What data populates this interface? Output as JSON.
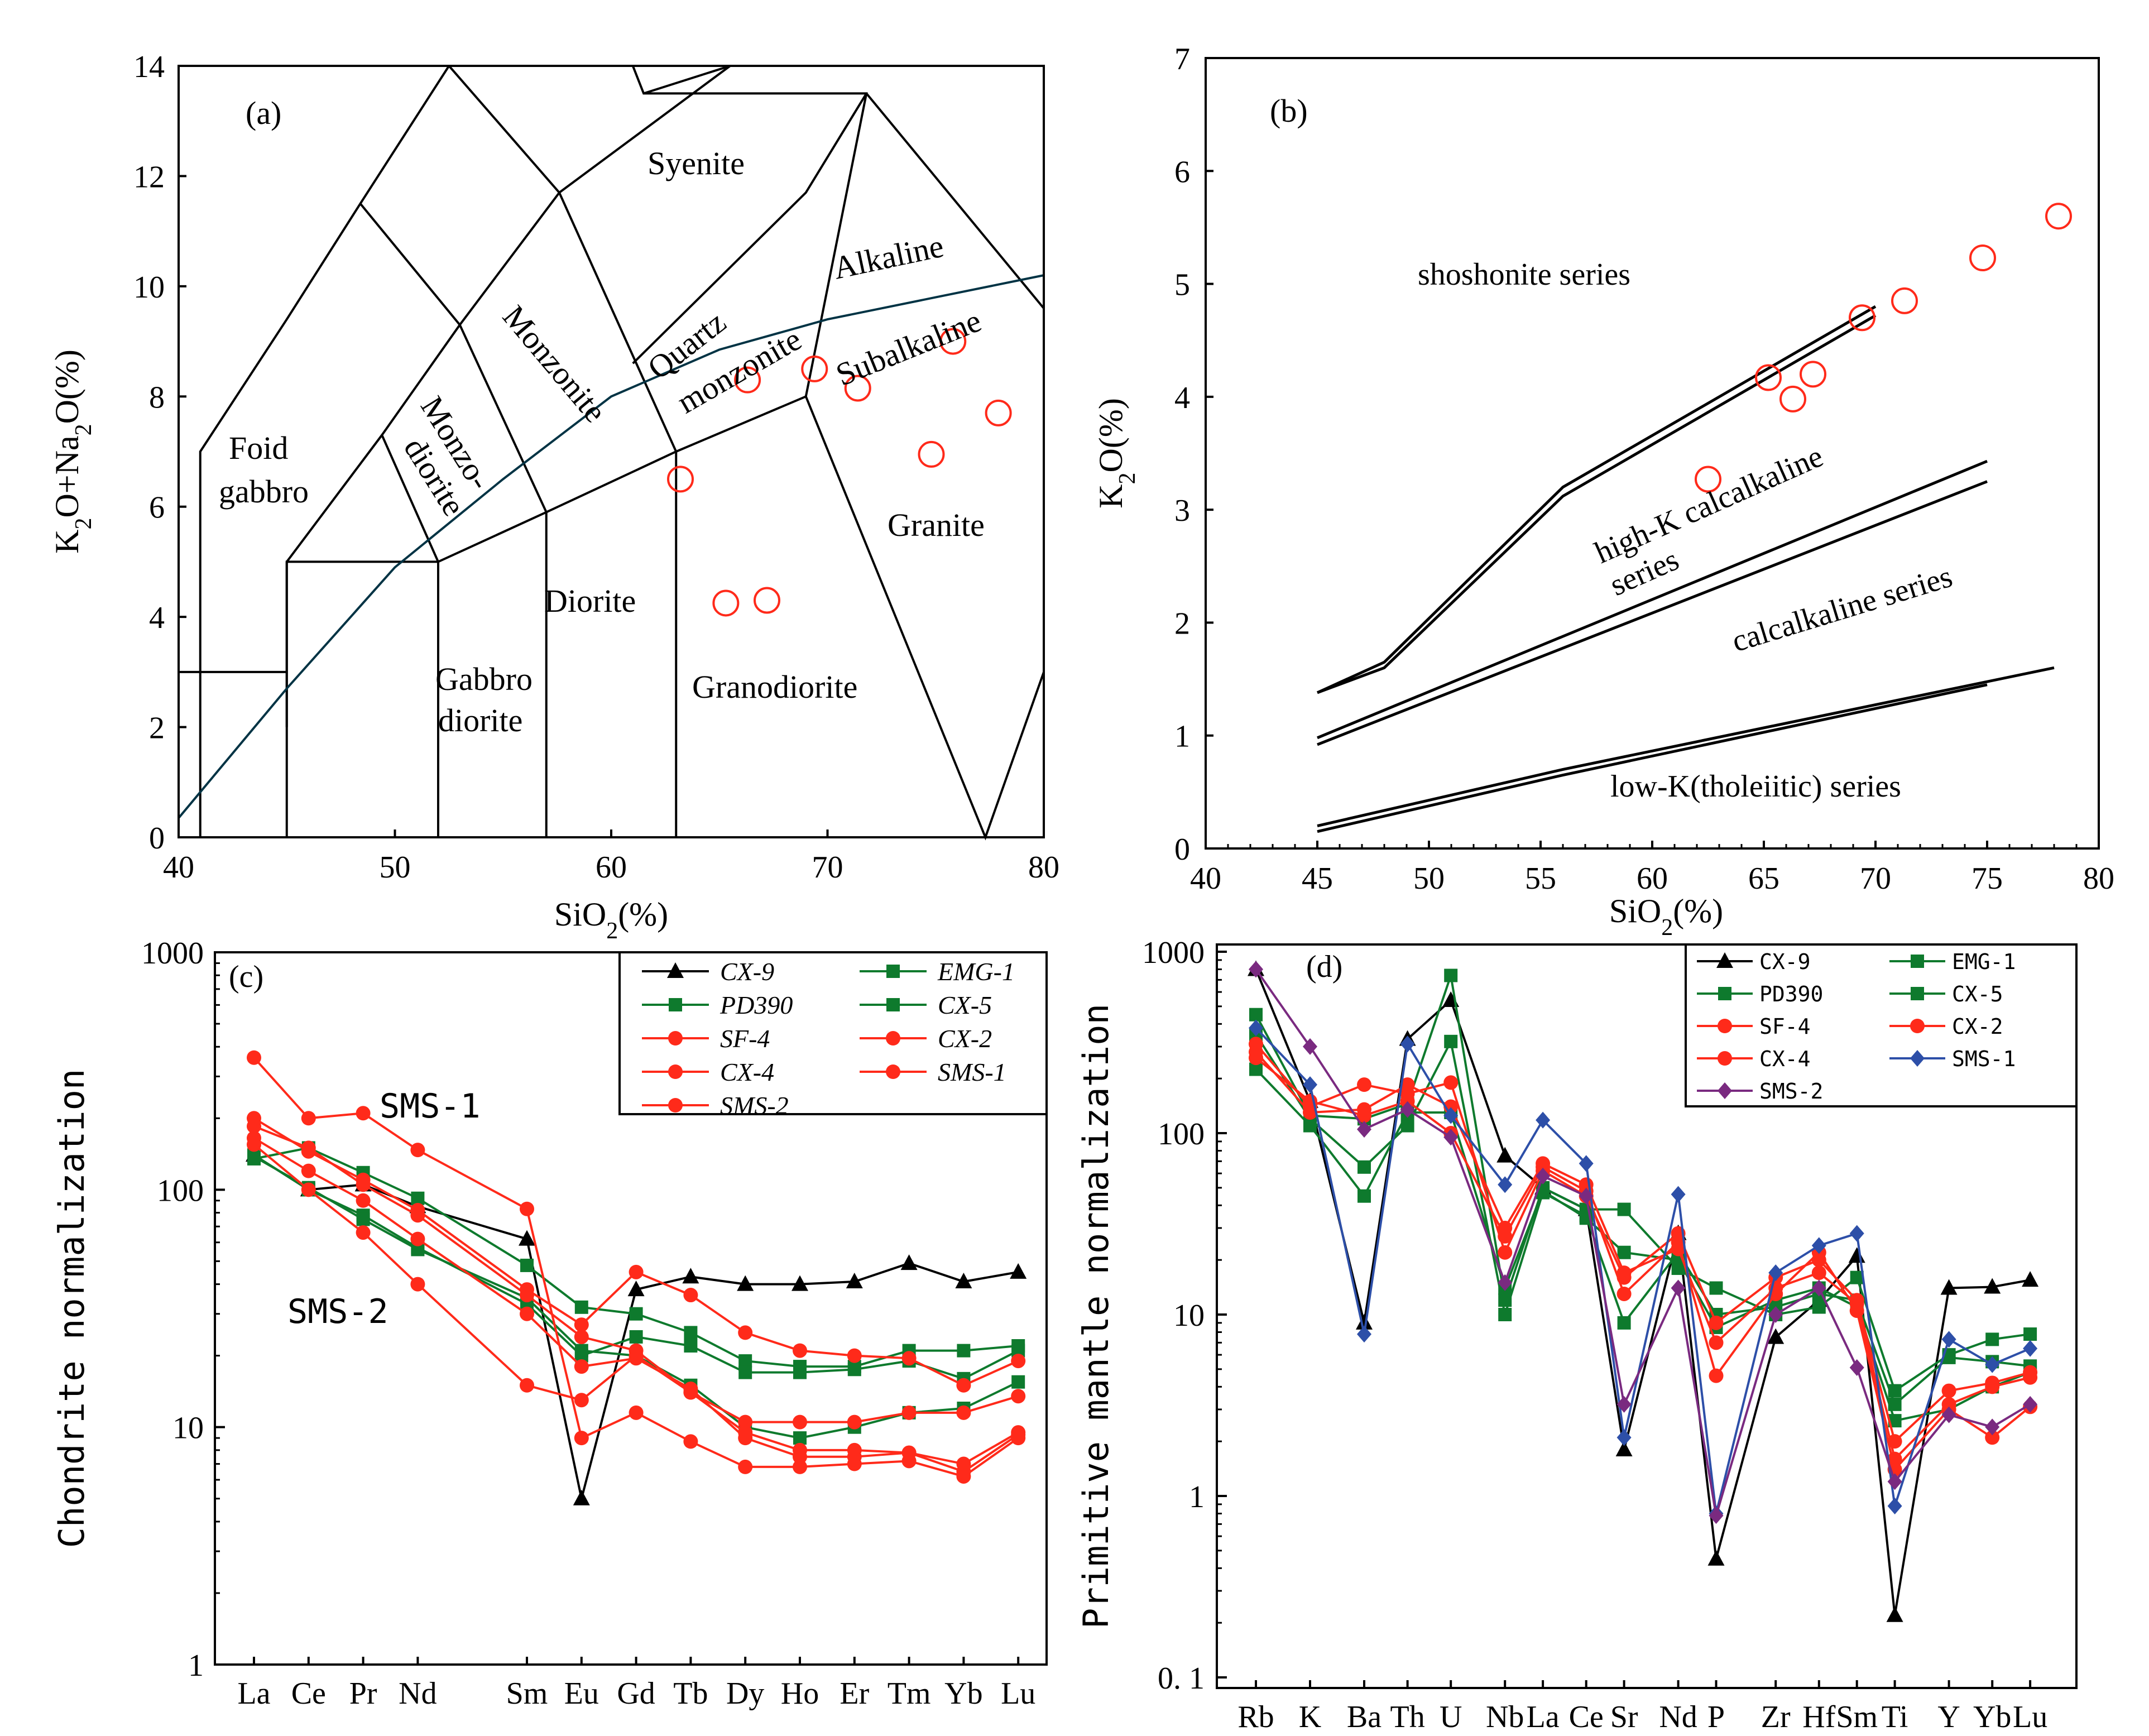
{
  "panels": {
    "a": {
      "label": "(a)",
      "xlabel": "SiO2(%)",
      "ylabel": "K2O+Na2O(%)",
      "xlim": [
        40,
        80
      ],
      "ylim": [
        0,
        14
      ],
      "xticks": [
        "40",
        "50",
        "60",
        "70",
        "80"
      ],
      "yticks": [
        "0",
        "2",
        "4",
        "6",
        "8",
        "10",
        "12",
        "14"
      ],
      "field_labels": [
        "Foid",
        "gabbro",
        "Monzo-",
        "diorite",
        "Monzonite",
        "Quartz",
        "monzonite",
        "Syenite",
        "Alkaline",
        "Subalkaline",
        "Diorite",
        "Gabbro",
        "diorite",
        "Granodiorite",
        "Granite"
      ],
      "boundary_color": "#003344",
      "marker_color": "#ff2a1a"
    },
    "b": {
      "label": "(b)",
      "xlabel": "SiO2(%)",
      "ylabel": "K2O(%)",
      "xlim": [
        40,
        80
      ],
      "ylim": [
        0,
        7
      ],
      "xticks": [
        "40",
        "45",
        "50",
        "55",
        "60",
        "65",
        "70",
        "75",
        "80"
      ],
      "yticks": [
        "0",
        "1",
        "2",
        "3",
        "4",
        "5",
        "6",
        "7"
      ],
      "series_labels": [
        "shoshonite series",
        "high-K calcalkaline",
        "series",
        "calcalkaline series",
        "low-K(tholeiitic) series"
      ]
    },
    "c": {
      "label": "(c)",
      "ylabel": "Chondrite normalization",
      "yticks": [
        "1",
        "10",
        "100",
        "1000"
      ],
      "annotations": [
        "SMS-1",
        "SMS-2"
      ]
    },
    "d": {
      "label": "(d)",
      "ylabel": "Primitive mantle normalization",
      "yticks": [
        "0. 1",
        "1",
        "10",
        "100",
        "1000"
      ]
    }
  },
  "chart_data": [
    {
      "type": "scatter",
      "title": "",
      "xlabel": "SiO2(%)",
      "ylabel": "K2O+Na2O(%)",
      "xlim": [
        40,
        80
      ],
      "ylim": [
        0,
        14
      ],
      "points": [
        [
          63.2,
          6.5
        ],
        [
          65.3,
          4.25
        ],
        [
          67.2,
          4.3
        ],
        [
          66.3,
          8.3
        ],
        [
          69.4,
          8.5
        ],
        [
          71.4,
          8.15
        ],
        [
          74.8,
          6.95
        ],
        [
          75.8,
          9.0
        ],
        [
          77.9,
          7.7
        ]
      ],
      "field_lines": [
        [
          [
            41,
            0
          ],
          [
            41,
            7
          ],
          [
            45,
            9.4
          ],
          [
            48.4,
            11.5
          ],
          [
            52.5,
            14
          ]
        ],
        [
          [
            45,
            0
          ],
          [
            45,
            5
          ],
          [
            52,
            5
          ],
          [
            57,
            5.9
          ],
          [
            63,
            7
          ],
          [
            69,
            8
          ],
          [
            71.8,
            13.5
          ],
          [
            61.5,
            13.5
          ],
          [
            61,
            14
          ]
        ],
        [
          [
            45,
            2
          ],
          [
            45,
            5
          ]
        ],
        [
          [
            45,
            5
          ],
          [
            49.4,
            7.3
          ],
          [
            53,
            9.3
          ],
          [
            48.4,
            11.5
          ]
        ],
        [
          [
            49.4,
            7.3
          ],
          [
            52,
            5
          ]
        ],
        [
          [
            52,
            0
          ],
          [
            52,
            5
          ]
        ],
        [
          [
            53,
            9.3
          ],
          [
            57,
            5.9
          ],
          [
            57,
            0
          ]
        ],
        [
          [
            53,
            9.3
          ],
          [
            57.6,
            11.7
          ],
          [
            52.5,
            14
          ]
        ],
        [
          [
            57.6,
            11.7
          ],
          [
            63,
            7
          ],
          [
            63,
            0
          ]
        ],
        [
          [
            57.6,
            11.7
          ],
          [
            65.5,
            14
          ]
        ],
        [
          [
            61.5,
            13.5
          ],
          [
            65.5,
            14
          ]
        ],
        [
          [
            69,
            8
          ],
          [
            77.3,
            0
          ],
          [
            80,
            3
          ]
        ],
        [
          [
            71.8,
            13.5
          ],
          [
            80,
            9.6
          ]
        ],
        [
          [
            40,
            3
          ],
          [
            45,
            3
          ]
        ],
        [
          [
            61,
            8.6
          ],
          [
            69,
            11.7
          ],
          [
            71.8,
            13.5
          ]
        ]
      ],
      "alkaline_boundary": [
        [
          40,
          0.35
        ],
        [
          45,
          2.7
        ],
        [
          50,
          4.9
        ],
        [
          55,
          6.5
        ],
        [
          60,
          8.0
        ],
        [
          65,
          8.85
        ],
        [
          70,
          9.4
        ],
        [
          75,
          9.8
        ],
        [
          80,
          10.2
        ]
      ]
    },
    {
      "type": "scatter",
      "title": "",
      "xlabel": "SiO2(%)",
      "ylabel": "K2O(%)",
      "xlim": [
        40,
        80
      ],
      "ylim": [
        0,
        7
      ],
      "points": [
        [
          62.5,
          3.27
        ],
        [
          65.2,
          4.17
        ],
        [
          66.3,
          3.98
        ],
        [
          67.2,
          4.2
        ],
        [
          69.4,
          4.7
        ],
        [
          71.3,
          4.85
        ],
        [
          74.8,
          5.23
        ],
        [
          78.2,
          5.6
        ]
      ],
      "series_boundaries": [
        [
          [
            45,
            1.38
          ],
          [
            48,
            1.65
          ],
          [
            56,
            3.2
          ],
          [
            70,
            4.8
          ]
        ],
        [
          [
            45,
            1.38
          ],
          [
            48,
            1.6
          ],
          [
            56,
            3.12
          ],
          [
            70,
            4.72
          ]
        ],
        [
          [
            45,
            0.98
          ],
          [
            75,
            3.43
          ]
        ],
        [
          [
            45,
            0.92
          ],
          [
            75,
            3.25
          ]
        ],
        [
          [
            45,
            0.2
          ],
          [
            56,
            0.7
          ],
          [
            78,
            1.6
          ]
        ],
        [
          [
            45,
            0.15
          ],
          [
            56,
            0.65
          ],
          [
            75,
            1.45
          ]
        ]
      ]
    },
    {
      "type": "line",
      "title": "",
      "ylabel": "Chondrite normalization",
      "log_y": true,
      "ylim": [
        1,
        1000
      ],
      "categories": [
        "La",
        "Ce",
        "Pr",
        "Nd",
        "Sm",
        "Eu",
        "Gd",
        "Tb",
        "Dy",
        "Ho",
        "Er",
        "Tm",
        "Yb",
        "Lu"
      ],
      "category_positions": [
        0,
        1,
        2,
        3,
        5,
        6,
        7,
        8,
        9,
        10,
        11,
        12,
        13,
        14
      ],
      "series": [
        {
          "name": "CX-9",
          "color": "#000000",
          "marker": "triangle",
          "values": [
            140,
            100,
            105,
            85,
            62,
            5,
            38,
            43,
            40,
            40,
            41,
            49,
            41,
            45
          ]
        },
        {
          "name": "EMG-1",
          "color": "#0e7a2d",
          "marker": "square",
          "values": [
            135,
            150,
            118,
            92,
            48,
            32,
            30,
            25,
            19,
            18,
            18,
            21,
            21,
            22
          ]
        },
        {
          "name": "PD390",
          "color": "#0e7a2d",
          "marker": "square",
          "values": [
            140,
            100,
            78,
            57,
            33,
            20,
            24,
            22,
            17,
            17,
            17.5,
            19,
            16,
            21
          ]
        },
        {
          "name": "CX-5",
          "color": "#0e7a2d",
          "marker": "square",
          "values": [
            138,
            102,
            75,
            56,
            35,
            21,
            20,
            15,
            10,
            9,
            10,
            11.5,
            12,
            15.5
          ]
        },
        {
          "name": "SF-4",
          "color": "#ff2a1a",
          "marker": "circle",
          "values": [
            360,
            200,
            210,
            147,
            83,
            9,
            11.5,
            8.7,
            6.8,
            6.8,
            7,
            7.2,
            6.2,
            9
          ]
        },
        {
          "name": "CX-2",
          "color": "#ff2a1a",
          "marker": "circle",
          "values": [
            200,
            145,
            110,
            82,
            38,
            27,
            45,
            36,
            25,
            21,
            20,
            19.5,
            15,
            19
          ]
        },
        {
          "name": "CX-4",
          "color": "#ff2a1a",
          "marker": "circle",
          "values": [
            185,
            150,
            105,
            78,
            36,
            24,
            21,
            14,
            10.5,
            10.5,
            10.5,
            11.5,
            11.5,
            13.5
          ]
        },
        {
          "name": "SMS-1",
          "color": "#ff2a1a",
          "marker": "circle",
          "values": [
            165,
            120,
            90,
            62,
            30,
            18,
            19.5,
            14.5,
            9,
            7.5,
            7.5,
            7.8,
            6.5,
            9.3
          ]
        },
        {
          "name": "SMS-2",
          "color": "#ff2a1a",
          "marker": "circle",
          "values": [
            155,
            100,
            66,
            40,
            15,
            13,
            20,
            14,
            9.5,
            8,
            8,
            7.8,
            7,
            9.5
          ]
        }
      ]
    },
    {
      "type": "line",
      "title": "",
      "ylabel": "Primitive mantle normalization",
      "log_y": true,
      "ylim": [
        0.1,
        1000
      ],
      "categories": [
        "Rb",
        "K",
        "Ba",
        "Th",
        "U",
        "Nb",
        "La",
        "Ce",
        "Sr",
        "Nd",
        "P",
        "Zr",
        "Hf",
        "Sm",
        "Ti",
        "Y",
        "Yb",
        "Lu"
      ],
      "category_positions": [
        0,
        1,
        2,
        2.8,
        3.6,
        4.6,
        5.3,
        6.1,
        6.8,
        7.8,
        8.5,
        9.6,
        10.4,
        11.1,
        11.8,
        12.8,
        13.6,
        14.3
      ],
      "series": [
        {
          "name": "CX-9",
          "color": "#000000",
          "marker": "triangle",
          "values": [
            800,
            150,
            9,
            330,
            540,
            75,
            50,
            38,
            1.8,
            28,
            0.45,
            7.5,
            12,
            21,
            0.22,
            14,
            14.2,
            15.5
          ]
        },
        {
          "name": "EMG-1",
          "color": "#0e7a2d",
          "marker": "square",
          "values": [
            450,
            125,
            120,
            145,
            740,
            12,
            50,
            38,
            38,
            18,
            14,
            10,
            11,
            16,
            3.8,
            6,
            7.3,
            7.8
          ]
        },
        {
          "name": "PD390",
          "color": "#0e7a2d",
          "marker": "square",
          "values": [
            350,
            120,
            65,
            110,
            320,
            10,
            47,
            35,
            9,
            22,
            10,
            11,
            13,
            12,
            3.2,
            5.8,
            5.5,
            5.2
          ]
        },
        {
          "name": "CX-5",
          "color": "#0e7a2d",
          "marker": "square",
          "values": [
            225,
            110,
            45,
            130,
            130,
            14,
            48,
            34,
            22,
            20,
            8.5,
            12,
            14,
            11,
            2.6,
            3,
            4,
            4.8
          ]
        },
        {
          "name": "SF-4",
          "color": "#ff2a1a",
          "marker": "circle",
          "values": [
            310,
            140,
            185,
            165,
            190,
            22,
            62,
            45,
            16,
            28,
            9,
            16,
            20,
            12,
            2,
            3.8,
            4.2,
            4.8
          ]
        },
        {
          "name": "CX-2",
          "color": "#ff2a1a",
          "marker": "circle",
          "values": [
            280,
            130,
            135,
            185,
            140,
            30,
            68,
            52,
            17,
            23,
            7,
            14,
            17,
            11.5,
            1.6,
            3.2,
            4,
            4.5
          ]
        },
        {
          "name": "CX-4",
          "color": "#ff2a1a",
          "marker": "circle",
          "values": [
            260,
            150,
            125,
            150,
            100,
            27,
            65,
            48,
            13,
            25,
            4.6,
            13,
            22,
            10.5,
            1.4,
            3,
            2.1,
            3.1
          ]
        },
        {
          "name": "SMS-1",
          "color": "#2d4fa8",
          "marker": "diamond",
          "values": [
            380,
            185,
            7.8,
            310,
            125,
            52,
            118,
            68,
            2.1,
            46,
            0.8,
            17,
            24,
            28,
            0.88,
            7.3,
            5.3,
            6.5
          ]
        },
        {
          "name": "SMS-2",
          "color": "#7a2a80",
          "marker": "diamond",
          "values": [
            800,
            300,
            105,
            135,
            95,
            15,
            58,
            45,
            3.2,
            14,
            0.78,
            10,
            14,
            5.1,
            1.2,
            2.8,
            2.4,
            3.2
          ]
        }
      ]
    }
  ]
}
